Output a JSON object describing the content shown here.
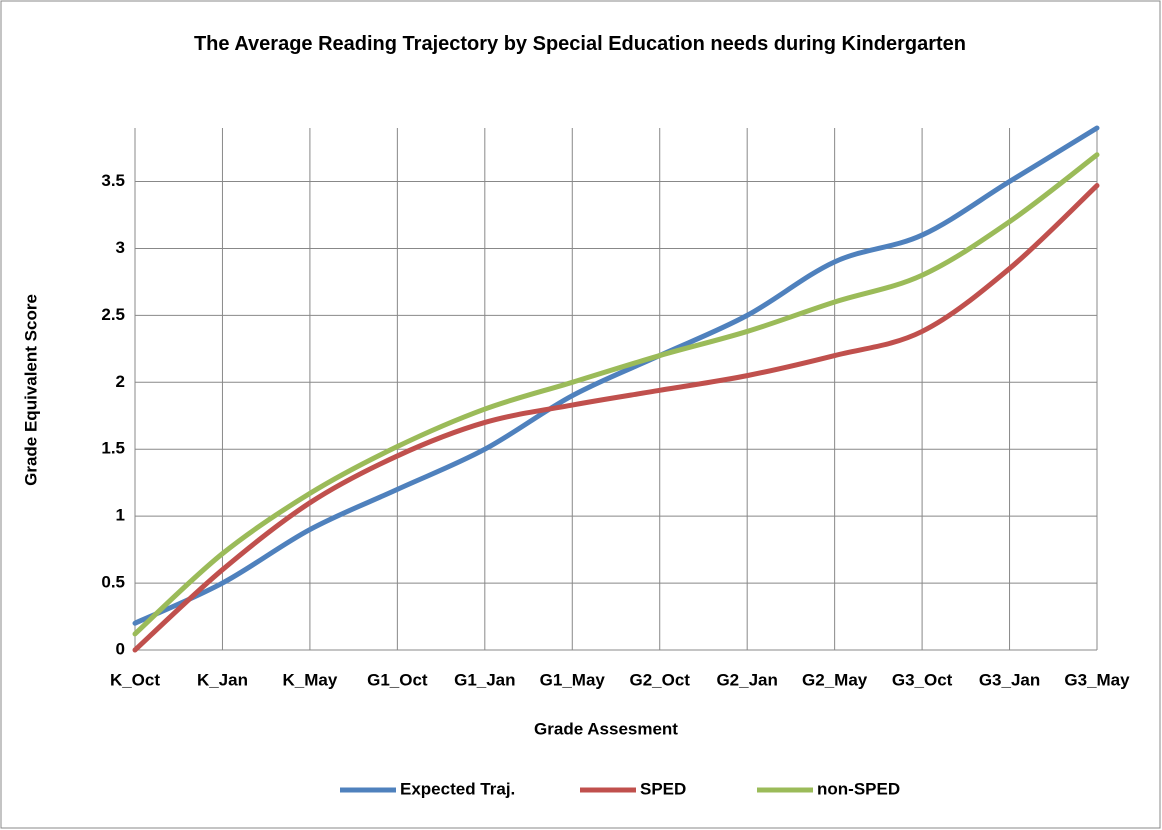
{
  "chart_data": {
    "type": "line",
    "title": "The Average Reading Trajectory by Special Education needs during Kindergarten",
    "x_label": "Grade Assesment",
    "y_label": "Grade Equivalent Score",
    "categories": [
      "K_Oct",
      "K_Jan",
      "K_May",
      "G1_Oct",
      "G1_Jan",
      "G1_May",
      "G2_Oct",
      "G2_Jan",
      "G2_May",
      "G3_Oct",
      "G3_Jan",
      "G3_May"
    ],
    "series": [
      {
        "name": "Expected Traj.",
        "color": "#4f81bd",
        "values": [
          0.2,
          0.5,
          0.9,
          1.2,
          1.5,
          1.9,
          2.2,
          2.5,
          2.9,
          3.1,
          3.5,
          3.9
        ]
      },
      {
        "name": "SPED",
        "color": "#c0504d",
        "values": [
          0.0,
          0.6,
          1.1,
          1.45,
          1.7,
          1.83,
          1.94,
          2.05,
          2.2,
          2.38,
          2.85,
          3.47
        ]
      },
      {
        "name": "non-SPED",
        "color": "#9bbb59",
        "values": [
          0.12,
          0.72,
          1.17,
          1.52,
          1.8,
          2.0,
          2.2,
          2.38,
          2.6,
          2.8,
          3.2,
          3.7
        ]
      }
    ],
    "ylim": [
      0,
      3.9
    ],
    "yticks": [
      0,
      0.5,
      1,
      1.5,
      2,
      2.5,
      3,
      3.5
    ],
    "grid": true,
    "legend": "bottom"
  }
}
